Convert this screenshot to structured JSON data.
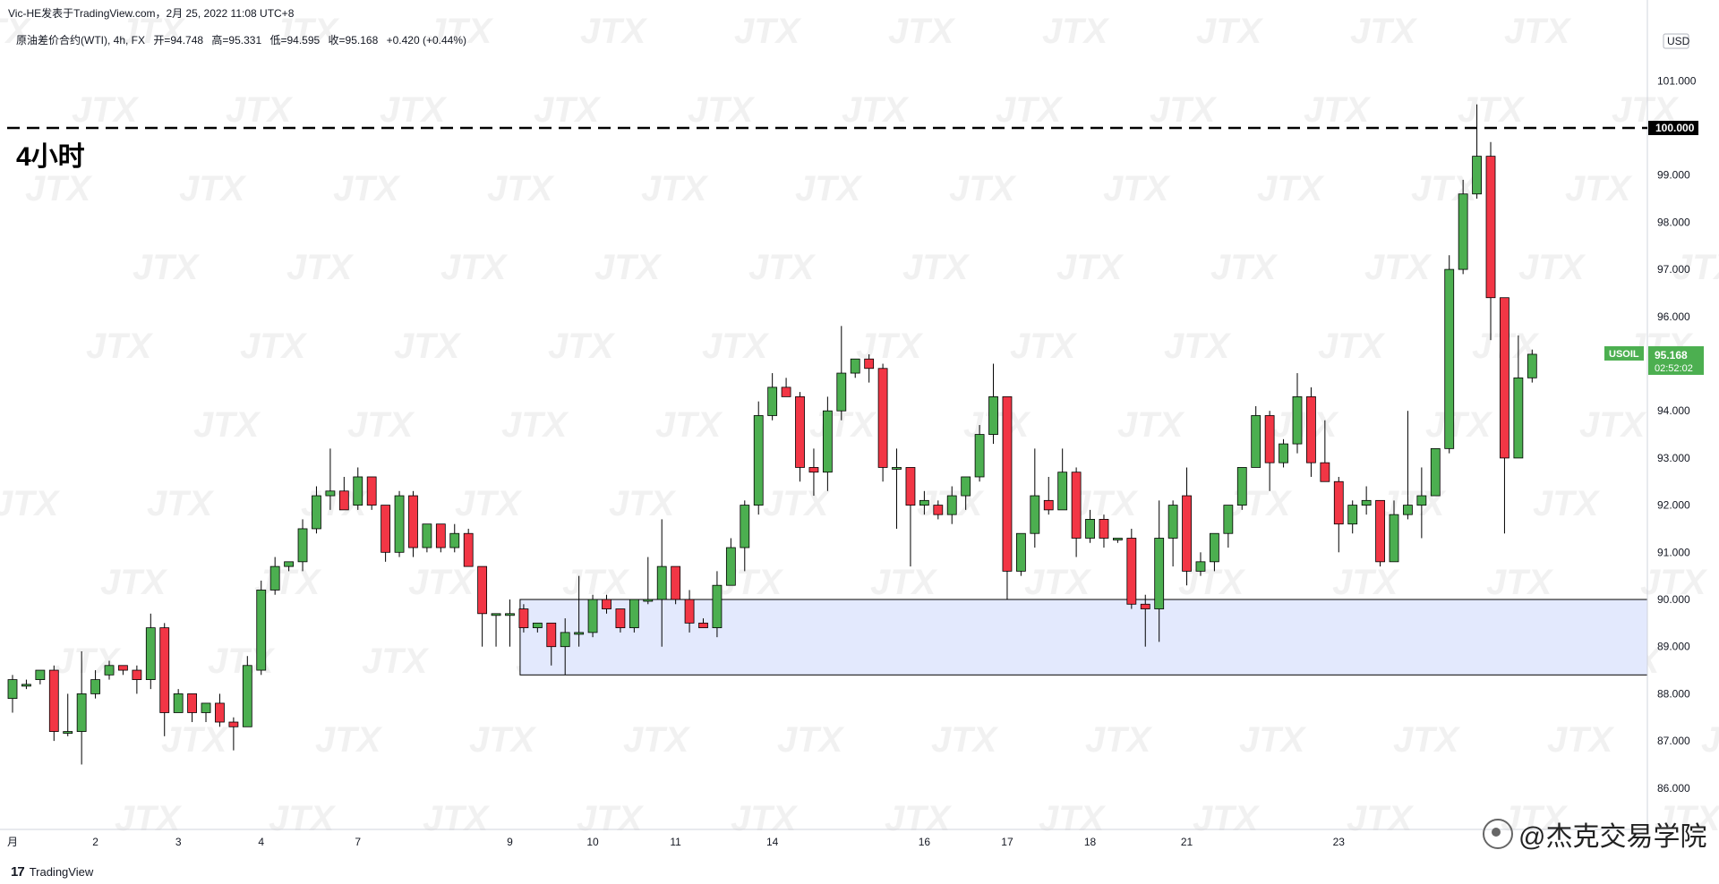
{
  "header": {
    "publisher": "Vic-HE发表于TradingView.com，2月 25, 2022 11:08 UTC+8",
    "symbol": "原油差价合约(WTI), 4h, FX",
    "open": "开=94.748",
    "high": "高=95.331",
    "low": "低=94.595",
    "close": "收=95.168",
    "change": "+0.420 (+0.44%)"
  },
  "annotation_label": "4小时",
  "brand": "TradingView",
  "credit": "@杰克交易学院",
  "currency": "USD",
  "price_tag": {
    "symbol": "USOIL",
    "price": "95.168",
    "countdown": "02:52:02"
  },
  "level_label": "100.000",
  "watermark_text": "JTX",
  "colors": {
    "up": "#4caf50",
    "down": "#f23645",
    "zone": "#e3e9fd"
  },
  "chart_data": {
    "type": "candlestick",
    "title": "",
    "y_ticks": [
      86,
      87,
      88,
      89,
      90,
      91,
      92,
      93,
      94,
      95,
      96,
      97,
      98,
      99,
      100,
      101
    ],
    "y_tick_labels": [
      "86.000",
      "87.000",
      "88.000",
      "89.000",
      "90.000",
      "91.000",
      "92.000",
      "93.000",
      "94.000",
      "95.000",
      "96.000",
      "97.000",
      "98.000",
      "99.000",
      "100.000",
      "101.000"
    ],
    "ylim": [
      85.3,
      102.0
    ],
    "x_ticks": [
      {
        "index": 0,
        "label": "月"
      },
      {
        "index": 6,
        "label": "2"
      },
      {
        "index": 12,
        "label": "3"
      },
      {
        "index": 18,
        "label": "4"
      },
      {
        "index": 25,
        "label": "7"
      },
      {
        "index": 36,
        "label": "9"
      },
      {
        "index": 42,
        "label": "10"
      },
      {
        "index": 48,
        "label": "11"
      },
      {
        "index": 55,
        "label": "14"
      },
      {
        "index": 66,
        "label": "16"
      },
      {
        "index": 72,
        "label": "17"
      },
      {
        "index": 78,
        "label": "18"
      },
      {
        "index": 85,
        "label": "21"
      },
      {
        "index": 96,
        "label": "23"
      }
    ],
    "horizontal_line": 100.0,
    "zone": {
      "from_index": 37,
      "top": 90.0,
      "bottom": 88.4
    },
    "candles": [
      {
        "o": 87.9,
        "h": 88.4,
        "l": 87.6,
        "c": 88.3
      },
      {
        "o": 88.2,
        "h": 88.3,
        "l": 88.1,
        "c": 88.2
      },
      {
        "o": 88.3,
        "h": 88.5,
        "l": 88.2,
        "c": 88.5
      },
      {
        "o": 88.5,
        "h": 88.6,
        "l": 87.0,
        "c": 87.2
      },
      {
        "o": 87.2,
        "h": 88.0,
        "l": 87.1,
        "c": 87.2
      },
      {
        "o": 87.2,
        "h": 88.9,
        "l": 86.5,
        "c": 88.0
      },
      {
        "o": 88.0,
        "h": 88.5,
        "l": 87.9,
        "c": 88.3
      },
      {
        "o": 88.4,
        "h": 88.7,
        "l": 88.3,
        "c": 88.6
      },
      {
        "o": 88.6,
        "h": 88.6,
        "l": 88.4,
        "c": 88.5
      },
      {
        "o": 88.5,
        "h": 88.6,
        "l": 88.0,
        "c": 88.3
      },
      {
        "o": 88.3,
        "h": 89.7,
        "l": 88.1,
        "c": 89.4
      },
      {
        "o": 89.4,
        "h": 89.5,
        "l": 87.1,
        "c": 87.6
      },
      {
        "o": 87.6,
        "h": 88.1,
        "l": 87.6,
        "c": 88.0
      },
      {
        "o": 88.0,
        "h": 88.0,
        "l": 87.4,
        "c": 87.6
      },
      {
        "o": 87.6,
        "h": 87.8,
        "l": 87.4,
        "c": 87.8
      },
      {
        "o": 87.8,
        "h": 88.0,
        "l": 87.3,
        "c": 87.4
      },
      {
        "o": 87.4,
        "h": 87.5,
        "l": 86.8,
        "c": 87.3
      },
      {
        "o": 87.3,
        "h": 88.8,
        "l": 87.3,
        "c": 88.6
      },
      {
        "o": 88.5,
        "h": 90.4,
        "l": 88.4,
        "c": 90.2
      },
      {
        "o": 90.2,
        "h": 90.9,
        "l": 90.1,
        "c": 90.7
      },
      {
        "o": 90.7,
        "h": 90.8,
        "l": 90.6,
        "c": 90.8
      },
      {
        "o": 90.8,
        "h": 91.7,
        "l": 90.6,
        "c": 91.5
      },
      {
        "o": 91.5,
        "h": 92.4,
        "l": 91.4,
        "c": 92.2
      },
      {
        "o": 92.2,
        "h": 93.2,
        "l": 91.9,
        "c": 92.3
      },
      {
        "o": 92.3,
        "h": 92.6,
        "l": 91.9,
        "c": 91.9
      },
      {
        "o": 92.0,
        "h": 92.8,
        "l": 91.9,
        "c": 92.6
      },
      {
        "o": 92.6,
        "h": 92.6,
        "l": 91.9,
        "c": 92.0
      },
      {
        "o": 92.0,
        "h": 92.0,
        "l": 90.8,
        "c": 91.0
      },
      {
        "o": 91.0,
        "h": 92.3,
        "l": 90.9,
        "c": 92.2
      },
      {
        "o": 92.2,
        "h": 92.3,
        "l": 90.9,
        "c": 91.1
      },
      {
        "o": 91.1,
        "h": 91.6,
        "l": 91.0,
        "c": 91.6
      },
      {
        "o": 91.6,
        "h": 91.6,
        "l": 91.0,
        "c": 91.1
      },
      {
        "o": 91.1,
        "h": 91.6,
        "l": 91.0,
        "c": 91.4
      },
      {
        "o": 91.4,
        "h": 91.5,
        "l": 90.7,
        "c": 90.7
      },
      {
        "o": 90.7,
        "h": 90.7,
        "l": 89.0,
        "c": 89.7
      },
      {
        "o": 89.7,
        "h": 89.7,
        "l": 89.0,
        "c": 89.7
      },
      {
        "o": 89.7,
        "h": 90.0,
        "l": 89.0,
        "c": 89.7
      },
      {
        "o": 89.8,
        "h": 89.9,
        "l": 89.3,
        "c": 89.4
      },
      {
        "o": 89.4,
        "h": 89.5,
        "l": 89.3,
        "c": 89.5
      },
      {
        "o": 89.5,
        "h": 89.5,
        "l": 88.6,
        "c": 89.0
      },
      {
        "o": 89.0,
        "h": 89.6,
        "l": 88.4,
        "c": 89.3
      },
      {
        "o": 89.3,
        "h": 90.5,
        "l": 89.0,
        "c": 89.3
      },
      {
        "o": 89.3,
        "h": 90.1,
        "l": 89.2,
        "c": 90.0
      },
      {
        "o": 90.0,
        "h": 90.1,
        "l": 89.7,
        "c": 89.8
      },
      {
        "o": 89.8,
        "h": 89.8,
        "l": 89.3,
        "c": 89.4
      },
      {
        "o": 89.4,
        "h": 90.0,
        "l": 89.3,
        "c": 90.0
      },
      {
        "o": 90.0,
        "h": 90.9,
        "l": 89.9,
        "c": 90.0
      },
      {
        "o": 90.0,
        "h": 91.7,
        "l": 89.0,
        "c": 90.7
      },
      {
        "o": 90.7,
        "h": 90.7,
        "l": 89.9,
        "c": 90.0
      },
      {
        "o": 90.0,
        "h": 90.2,
        "l": 89.3,
        "c": 89.5
      },
      {
        "o": 89.5,
        "h": 89.6,
        "l": 89.4,
        "c": 89.4
      },
      {
        "o": 89.4,
        "h": 90.6,
        "l": 89.2,
        "c": 90.3
      },
      {
        "o": 90.3,
        "h": 91.3,
        "l": 90.3,
        "c": 91.1
      },
      {
        "o": 91.1,
        "h": 92.1,
        "l": 90.6,
        "c": 92.0
      },
      {
        "o": 92.0,
        "h": 94.2,
        "l": 91.8,
        "c": 93.9
      },
      {
        "o": 93.9,
        "h": 94.8,
        "l": 93.8,
        "c": 94.5
      },
      {
        "o": 94.5,
        "h": 94.7,
        "l": 94.3,
        "c": 94.3
      },
      {
        "o": 94.3,
        "h": 94.4,
        "l": 92.5,
        "c": 92.8
      },
      {
        "o": 92.8,
        "h": 93.2,
        "l": 92.2,
        "c": 92.7
      },
      {
        "o": 92.7,
        "h": 94.3,
        "l": 92.3,
        "c": 94.0
      },
      {
        "o": 94.0,
        "h": 95.8,
        "l": 93.8,
        "c": 94.8
      },
      {
        "o": 94.8,
        "h": 95.1,
        "l": 94.7,
        "c": 95.1
      },
      {
        "o": 95.1,
        "h": 95.2,
        "l": 94.6,
        "c": 94.9
      },
      {
        "o": 94.9,
        "h": 95.0,
        "l": 92.5,
        "c": 92.8
      },
      {
        "o": 92.8,
        "h": 93.2,
        "l": 91.5,
        "c": 92.8
      },
      {
        "o": 92.8,
        "h": 92.8,
        "l": 90.7,
        "c": 92.0
      },
      {
        "o": 92.0,
        "h": 92.3,
        "l": 91.8,
        "c": 92.1
      },
      {
        "o": 92.0,
        "h": 92.1,
        "l": 91.7,
        "c": 91.8
      },
      {
        "o": 91.8,
        "h": 92.4,
        "l": 91.6,
        "c": 92.2
      },
      {
        "o": 92.2,
        "h": 92.6,
        "l": 91.9,
        "c": 92.6
      },
      {
        "o": 92.6,
        "h": 93.7,
        "l": 92.5,
        "c": 93.5
      },
      {
        "o": 93.5,
        "h": 95.0,
        "l": 93.3,
        "c": 94.3
      },
      {
        "o": 94.3,
        "h": 94.3,
        "l": 90.0,
        "c": 90.6
      },
      {
        "o": 90.6,
        "h": 91.4,
        "l": 90.5,
        "c": 91.4
      },
      {
        "o": 91.4,
        "h": 93.2,
        "l": 91.1,
        "c": 92.2
      },
      {
        "o": 92.1,
        "h": 92.6,
        "l": 91.8,
        "c": 91.9
      },
      {
        "o": 91.9,
        "h": 93.2,
        "l": 91.9,
        "c": 92.7
      },
      {
        "o": 92.7,
        "h": 92.8,
        "l": 90.9,
        "c": 91.3
      },
      {
        "o": 91.3,
        "h": 91.9,
        "l": 91.2,
        "c": 91.7
      },
      {
        "o": 91.7,
        "h": 91.8,
        "l": 91.1,
        "c": 91.3
      },
      {
        "o": 91.3,
        "h": 91.3,
        "l": 91.2,
        "c": 91.3
      },
      {
        "o": 91.3,
        "h": 91.5,
        "l": 89.8,
        "c": 89.9
      },
      {
        "o": 89.9,
        "h": 90.1,
        "l": 89.0,
        "c": 89.8
      },
      {
        "o": 89.8,
        "h": 92.1,
        "l": 89.1,
        "c": 91.3
      },
      {
        "o": 91.3,
        "h": 92.1,
        "l": 90.7,
        "c": 92.0
      },
      {
        "o": 92.2,
        "h": 92.8,
        "l": 90.3,
        "c": 90.6
      },
      {
        "o": 90.6,
        "h": 91.0,
        "l": 90.5,
        "c": 90.8
      },
      {
        "o": 90.8,
        "h": 91.4,
        "l": 90.6,
        "c": 91.4
      },
      {
        "o": 91.4,
        "h": 92.0,
        "l": 91.1,
        "c": 92.0
      },
      {
        "o": 92.0,
        "h": 92.8,
        "l": 91.9,
        "c": 92.8
      },
      {
        "o": 92.8,
        "h": 94.1,
        "l": 92.8,
        "c": 93.9
      },
      {
        "o": 93.9,
        "h": 94.0,
        "l": 92.3,
        "c": 92.9
      },
      {
        "o": 92.9,
        "h": 93.4,
        "l": 92.8,
        "c": 93.3
      },
      {
        "o": 93.3,
        "h": 94.8,
        "l": 93.1,
        "c": 94.3
      },
      {
        "o": 94.3,
        "h": 94.5,
        "l": 92.6,
        "c": 92.9
      },
      {
        "o": 92.9,
        "h": 93.8,
        "l": 92.5,
        "c": 92.5
      },
      {
        "o": 92.5,
        "h": 92.6,
        "l": 91.0,
        "c": 91.6
      },
      {
        "o": 91.6,
        "h": 92.1,
        "l": 91.4,
        "c": 92.0
      },
      {
        "o": 92.0,
        "h": 92.4,
        "l": 91.8,
        "c": 92.1
      },
      {
        "o": 92.1,
        "h": 92.1,
        "l": 90.7,
        "c": 90.8
      },
      {
        "o": 90.8,
        "h": 92.1,
        "l": 90.8,
        "c": 91.8
      },
      {
        "o": 91.8,
        "h": 94.0,
        "l": 91.7,
        "c": 92.0
      },
      {
        "o": 92.0,
        "h": 92.8,
        "l": 91.3,
        "c": 92.2
      },
      {
        "o": 92.2,
        "h": 93.2,
        "l": 92.2,
        "c": 93.2
      },
      {
        "o": 93.2,
        "h": 97.3,
        "l": 93.1,
        "c": 97.0
      },
      {
        "o": 97.0,
        "h": 98.9,
        "l": 96.9,
        "c": 98.6
      },
      {
        "o": 98.6,
        "h": 100.5,
        "l": 98.5,
        "c": 99.4
      },
      {
        "o": 99.4,
        "h": 99.7,
        "l": 95.5,
        "c": 96.4
      },
      {
        "o": 96.4,
        "h": 96.4,
        "l": 91.4,
        "c": 93.0
      },
      {
        "o": 93.0,
        "h": 95.6,
        "l": 93.0,
        "c": 94.7
      },
      {
        "o": 94.7,
        "h": 95.3,
        "l": 94.6,
        "c": 95.2
      }
    ]
  }
}
